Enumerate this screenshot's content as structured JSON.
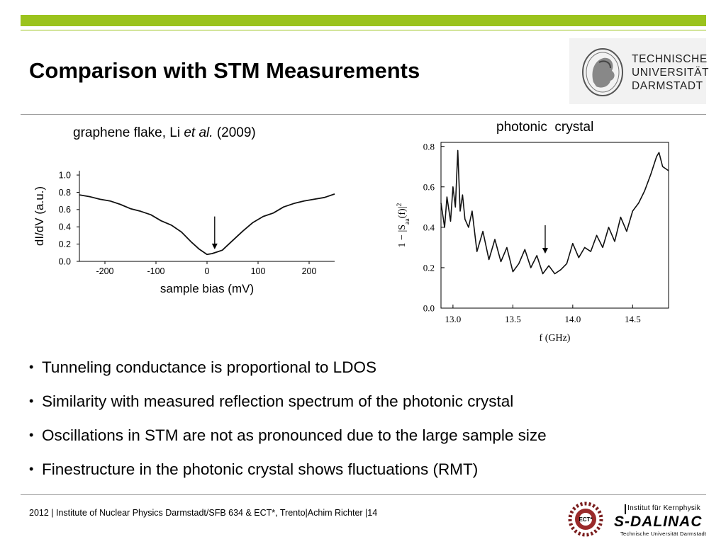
{
  "slide": {
    "title": "Comparison with STM Measurements",
    "accent_color": "#9bc31d",
    "logo": {
      "lines": [
        "TECHNISCHE",
        "UNIVERSITÄT",
        "DARMSTADT"
      ],
      "icon": "athena-seal-icon"
    }
  },
  "captions": {
    "left_pre": "graphene flake, Li ",
    "left_italic": "et al.",
    "left_post": " (2009)",
    "right": "photonic  crystal"
  },
  "chart_data": [
    {
      "type": "line",
      "xlabel": "sample bias (mV)",
      "ylabel": "dI/dV (a.u.)",
      "xlim": [
        -250,
        250
      ],
      "ylim": [
        0,
        1.05
      ],
      "xticks": [
        -200,
        -100,
        0,
        100,
        200
      ],
      "yticks": [
        0.0,
        0.2,
        0.4,
        0.6,
        0.8,
        1.0
      ],
      "ytick_labels": [
        "0.0",
        "0.2",
        "0.4",
        "0.6",
        "0.8",
        "1.0"
      ],
      "arrow_at": {
        "x": 15,
        "y_from": 0.52,
        "y_to": 0.14
      },
      "series": [
        {
          "x": [
            -250,
            -230,
            -210,
            -190,
            -170,
            -150,
            -130,
            -110,
            -90,
            -70,
            -50,
            -30,
            -15,
            0,
            10,
            20,
            30,
            50,
            70,
            90,
            110,
            130,
            150,
            170,
            190,
            210,
            230,
            250
          ],
          "y": [
            0.77,
            0.75,
            0.72,
            0.7,
            0.66,
            0.61,
            0.58,
            0.54,
            0.47,
            0.42,
            0.34,
            0.22,
            0.14,
            0.08,
            0.09,
            0.11,
            0.13,
            0.24,
            0.35,
            0.45,
            0.52,
            0.56,
            0.63,
            0.67,
            0.7,
            0.72,
            0.74,
            0.78
          ]
        }
      ]
    },
    {
      "type": "line",
      "xlabel": "f (GHz)",
      "ylabel": "1 − |S",
      "ylabel_sub": "aa",
      "ylabel_post": "(f)|",
      "ylabel_sup": "2",
      "xlim": [
        12.9,
        14.8
      ],
      "ylim": [
        0,
        0.82
      ],
      "xticks": [
        13.0,
        13.5,
        14.0,
        14.5
      ],
      "xtick_labels": [
        "13.0",
        "13.5",
        "14.0",
        "14.5"
      ],
      "yticks": [
        0.0,
        0.2,
        0.4,
        0.6,
        0.8
      ],
      "ytick_labels": [
        "0.0",
        "0.2",
        "0.4",
        "0.6",
        "0.8"
      ],
      "arrow_at": {
        "x": 13.77,
        "y_from": 0.41,
        "y_to": 0.27
      },
      "series": [
        {
          "x": [
            12.9,
            12.93,
            12.95,
            12.98,
            13.0,
            13.02,
            13.04,
            13.06,
            13.08,
            13.1,
            13.13,
            13.16,
            13.2,
            13.25,
            13.3,
            13.35,
            13.4,
            13.45,
            13.5,
            13.55,
            13.6,
            13.65,
            13.7,
            13.75,
            13.8,
            13.85,
            13.9,
            13.95,
            14.0,
            14.05,
            14.1,
            14.15,
            14.2,
            14.25,
            14.3,
            14.35,
            14.4,
            14.45,
            14.5,
            14.55,
            14.6,
            14.65,
            14.7,
            14.72,
            14.75,
            14.8
          ],
          "y": [
            0.52,
            0.4,
            0.55,
            0.43,
            0.6,
            0.5,
            0.78,
            0.48,
            0.56,
            0.44,
            0.4,
            0.48,
            0.28,
            0.38,
            0.24,
            0.34,
            0.23,
            0.3,
            0.18,
            0.22,
            0.29,
            0.2,
            0.26,
            0.17,
            0.21,
            0.17,
            0.19,
            0.22,
            0.32,
            0.25,
            0.3,
            0.28,
            0.36,
            0.3,
            0.4,
            0.33,
            0.45,
            0.38,
            0.48,
            0.52,
            0.58,
            0.66,
            0.75,
            0.77,
            0.7,
            0.68
          ]
        }
      ]
    }
  ],
  "bullets": [
    "Tunneling conductance is proportional to LDOS",
    "Similarity with measured reflection spectrum of the photonic crystal",
    "Oscillations in STM are not as pronounced due to the large sample size",
    "Finestructure in the photonic crystal  shows fluctuations (RMT)"
  ],
  "bullet_glyph": "•",
  "footer": "2012 | Institute of Nuclear Physics Darmstadt/SFB 634 & ECT*, Trento|Achim Richter |14",
  "footer_logos": {
    "ect": "ECT*",
    "sdalinac_top": "Institut für Kernphysik",
    "sdalinac_main": "S-DALINAC",
    "sdalinac_bottom": "Technische Universität Darmstadt"
  }
}
